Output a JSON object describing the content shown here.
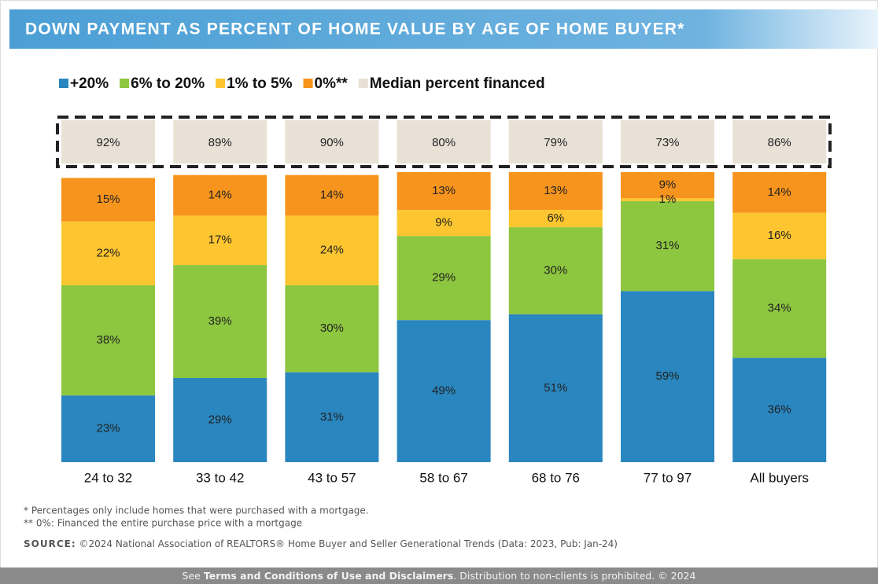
{
  "chart_data": {
    "type": "stacked_bar",
    "title": "DOWN PAYMENT AS PERCENT OF HOME VALUE BY AGE OF HOME BUYER*",
    "categories": [
      "24 to 32",
      "33 to 42",
      "43 to 57",
      "58 to 67",
      "68 to 76",
      "77 to 97",
      "All buyers"
    ],
    "series": [
      {
        "name": "+20%",
        "color": "#2a86bf",
        "values": [
          23,
          29,
          31,
          49,
          51,
          59,
          36
        ],
        "value_labels": [
          "23%",
          "29%",
          "31%",
          "49%",
          "51%",
          "59%",
          "36%"
        ]
      },
      {
        "name": "6% to 20%",
        "color": "#8dc63f",
        "values": [
          38,
          39,
          30,
          29,
          30,
          31,
          34
        ],
        "value_labels": [
          "38%",
          "39%",
          "30%",
          "29%",
          "30%",
          "31%",
          "34%"
        ]
      },
      {
        "name": "1% to 5%",
        "color": "#fdc52f",
        "values": [
          22,
          17,
          24,
          9,
          6,
          1,
          16
        ],
        "value_labels": [
          "22%",
          "17%",
          "24%",
          "9%",
          "6%",
          "1%",
          "16%"
        ]
      },
      {
        "name": "0%**",
        "color": "#f7941d",
        "values": [
          15,
          14,
          14,
          13,
          13,
          9,
          14
        ],
        "value_labels": [
          "15%",
          "14%",
          "14%",
          "13%",
          "13%",
          "9%",
          "14%"
        ]
      }
    ],
    "median_financed": {
      "name": "Median percent financed",
      "color": "#e9e1d6",
      "values": [
        92,
        89,
        90,
        80,
        79,
        73,
        86
      ],
      "value_labels": [
        "92%",
        "89%",
        "90%",
        "80%",
        "79%",
        "73%",
        "86%"
      ]
    }
  },
  "notes": [
    "* Percentages only include homes that were purchased with a mortgage.",
    "** 0%: Financed the entire purchase price with a mortgage"
  ],
  "source": {
    "label": "SOURCE:",
    "text": "©2024 National Association of REALTORS® Home Buyer and Seller Generational Trends (Data: 2023, Pub: Jan-24)"
  },
  "footer": {
    "before": "See ",
    "link": "Terms and Conditions of Use and Disclaimers",
    "after": ". Distribution to non-clients is prohibited. © 2024"
  }
}
